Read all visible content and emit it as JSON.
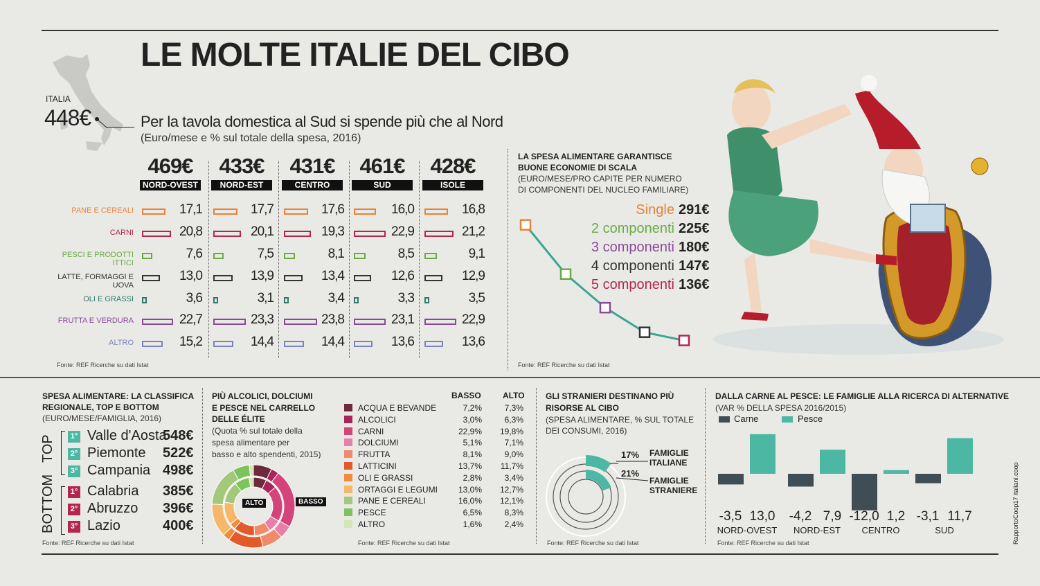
{
  "title": "LE MOLTE ITALIE DEL CIBO",
  "italia": {
    "label": "ITALIA",
    "value": "448€"
  },
  "main_chart": {
    "title": "Per la tavola domestica al Sud si spende più che al Nord",
    "subtitle": "(Euro/mese e % sul totale della spesa, 2016)",
    "source": "Fonte: REF Ricerche su dati Istat"
  },
  "economies": {
    "title_1": "LA SPESA ALIMENTARE GARANTISCE",
    "title_2": "BUONE ECONOMIE DI SCALA",
    "sub_1": "(EURO/MESE/PRO CAPITE PER NUMERO",
    "sub_2": "DI COMPONENTI DEL NUCLEO FAMILIARE)",
    "source": "Fonte: REF Ricerche su dati Istat"
  },
  "ranking": {
    "title_1": "SPESA ALIMENTARE: LA CLASSIFICA",
    "title_2": "REGIONALE, TOP E BOTTOM",
    "sub": "(EURO/MESE/FAMIGLIA, 2016)",
    "top_label": "TOP",
    "bottom_label": "BOTTOM",
    "top": [
      {
        "rank": "1°",
        "name": "Valle d'Aosta",
        "value": "548€"
      },
      {
        "rank": "2°",
        "name": "Piemonte",
        "value": "522€"
      },
      {
        "rank": "3°",
        "name": "Campania",
        "value": "498€"
      }
    ],
    "bottom": [
      {
        "rank": "1°",
        "name": "Calabria",
        "value": "385€"
      },
      {
        "rank": "2°",
        "name": "Abruzzo",
        "value": "396€"
      },
      {
        "rank": "3°",
        "name": "Lazio",
        "value": "400€"
      }
    ],
    "source": "Fonte: REF Ricerche su dati Istat"
  },
  "elite": {
    "title_1": "PIÙ ALCOLICI, DOLCIUMI",
    "title_2": "E PESCE NEL CARRELLO",
    "title_3": "DELLE ÉLITE",
    "sub_1": "(Quota % sul totale della",
    "sub_2": "spesa alimentare per",
    "sub_3": "basso e alto spendenti, 2015)",
    "alto_label": "ALTO",
    "basso_label": "BASSO",
    "col_basso": "BASSO",
    "col_alto": "ALTO",
    "source": "Fonte: REF Ricerche su dati Istat"
  },
  "stranieri": {
    "title_1": "GLI STRANIERI DESTINANO PIÙ",
    "title_2": "RISORSE AL CIBO",
    "sub_1": "(SPESA ALIMENTARE, % SUL TOTALE",
    "sub_2": "DEI CONSUMI, 2016)",
    "it_value": "17%",
    "it_label_1": "FAMIGLIE",
    "it_label_2": "ITALIANE",
    "st_value": "21%",
    "st_label_1": "FAMIGLIE",
    "st_label_2": "STRANIERE",
    "source": "Fonte: REF Ricerche su dati Istat"
  },
  "carne_pesce": {
    "title": "DALLA CARNE AL PESCE: LE FAMIGLIE ALLA RICERCA DI ALTERNATIVE",
    "sub": "(VAR % DELLA SPESA 2016/2015)",
    "legend_carne": "Carne",
    "legend_pesce": "Pesce",
    "source": "Fonte: REF Ricerche su dati Istat"
  },
  "credit": "RapportoCoop17 italiani.coop",
  "colors": {
    "carne": "#3f4e55",
    "pesce": "#4cb8a3",
    "ink": "#222222"
  },
  "chart_data": [
    {
      "type": "bar",
      "title": "Per la tavola domestica al Sud si spende più che al Nord",
      "categories": [
        "NORD-OVEST",
        "NORD-EST",
        "CENTRO",
        "SUD",
        "ISOLE"
      ],
      "totals": [
        "469€",
        "433€",
        "431€",
        "461€",
        "428€"
      ],
      "series": [
        {
          "name": "PANE E CEREALI",
          "color": "#e8823a",
          "values": [
            17.1,
            17.7,
            17.6,
            16.0,
            16.8
          ],
          "labels": [
            "17,1",
            "17,7",
            "17,6",
            "16,0",
            "16,8"
          ]
        },
        {
          "name": "CARNI",
          "color": "#b5264e",
          "values": [
            20.8,
            20.1,
            19.3,
            22.9,
            21.2
          ],
          "labels": [
            "20,8",
            "20,1",
            "19,3",
            "22,9",
            "21,2"
          ]
        },
        {
          "name": "PESCI E PRODOTTI ITTICI",
          "color": "#6aab45",
          "values": [
            7.6,
            7.5,
            8.1,
            8.5,
            9.1
          ],
          "labels": [
            "7,6",
            "7,5",
            "8,1",
            "8,5",
            "9,1"
          ]
        },
        {
          "name": "LATTE, FORMAGGI E UOVA",
          "color": "#333333",
          "values": [
            13.0,
            13.9,
            13.4,
            12.6,
            12.9
          ],
          "labels": [
            "13,0",
            "13,9",
            "13,4",
            "12,6",
            "12,9"
          ]
        },
        {
          "name": "OLI E GRASSI",
          "color": "#2d7a6b",
          "values": [
            3.6,
            3.1,
            3.4,
            3.3,
            3.5
          ],
          "labels": [
            "3,6",
            "3,1",
            "3,4",
            "3,3",
            "3,5"
          ]
        },
        {
          "name": "FRUTTA E VERDURA",
          "color": "#8a4a9b",
          "values": [
            22.7,
            23.3,
            23.8,
            23.1,
            22.9
          ],
          "labels": [
            "22,7",
            "23,3",
            "23,8",
            "23,1",
            "22,9"
          ]
        },
        {
          "name": "ALTRO",
          "color": "#7a84c4",
          "values": [
            15.2,
            14.4,
            14.4,
            13.6,
            13.6
          ],
          "labels": [
            "15,2",
            "14,4",
            "14,4",
            "13,6",
            "13,6"
          ]
        }
      ]
    },
    {
      "type": "line",
      "title": "LA SPESA ALIMENTARE GARANTISCE BUONE ECONOMIE DI SCALA",
      "categories": [
        "Single",
        "2 componenti",
        "3 componenti",
        "4 componenti",
        "5 componenti"
      ],
      "values": [
        291,
        225,
        180,
        147,
        136
      ],
      "labels": [
        "291€",
        "225€",
        "180€",
        "147€",
        "136€"
      ],
      "colors": [
        "#e8823a",
        "#6aab45",
        "#8a4a9b",
        "#333333",
        "#b5264e"
      ]
    },
    {
      "type": "pie",
      "title": "PIÙ ALCOLICI, DOLCIUMI E PESCE NEL CARRELLO DELLE ÉLITE",
      "categories": [
        "ACQUA E BEVANDE",
        "ALCOLICI",
        "CARNI",
        "DOLCIUMI",
        "FRUTTA",
        "LATTICINI",
        "OLI E GRASSI",
        "ORTAGGI E LEGUMI",
        "PANE E CEREALI",
        "PESCE",
        "ALTRO"
      ],
      "colors": [
        "#6e2a3c",
        "#a8245a",
        "#d4437a",
        "#e87fa8",
        "#f08a6a",
        "#e25a2a",
        "#ef8c3b",
        "#f5b86a",
        "#a4c87a",
        "#7cc35a",
        "#d5e6b4"
      ],
      "series": [
        {
          "name": "BASSO",
          "values": [
            7.2,
            3.0,
            22.9,
            5.1,
            8.1,
            13.7,
            2.8,
            13.0,
            16.0,
            6.5,
            1.6
          ],
          "labels": [
            "7,2%",
            "3,0%",
            "22,9%",
            "5,1%",
            "8,1%",
            "13,7%",
            "2,8%",
            "13,0%",
            "16,0%",
            "6,5%",
            "1,6%"
          ]
        },
        {
          "name": "ALTO",
          "values": [
            7.3,
            6.3,
            19.8,
            7.1,
            9.0,
            11.7,
            3.4,
            12.7,
            12.1,
            8.3,
            2.4
          ],
          "labels": [
            "7,3%",
            "6,3%",
            "19,8%",
            "7,1%",
            "9,0%",
            "11,7%",
            "3,4%",
            "12,7%",
            "12,1%",
            "8,3%",
            "2,4%"
          ]
        }
      ]
    },
    {
      "type": "bar",
      "title": "DALLA CARNE AL PESCE: LE FAMIGLIE ALLA RICERCA DI ALTERNATIVE",
      "categories": [
        "NORD-OVEST",
        "NORD-EST",
        "CENTRO",
        "SUD"
      ],
      "series": [
        {
          "name": "Carne",
          "values": [
            -3.5,
            -4.2,
            -12.0,
            -3.1
          ],
          "labels": [
            "-3,5",
            "-4,2",
            "-12,0",
            "-3,1"
          ]
        },
        {
          "name": "Pesce",
          "values": [
            13.0,
            7.9,
            1.2,
            11.7
          ],
          "labels": [
            "13,0",
            "7,9",
            "1,2",
            "11,7"
          ]
        }
      ]
    }
  ]
}
